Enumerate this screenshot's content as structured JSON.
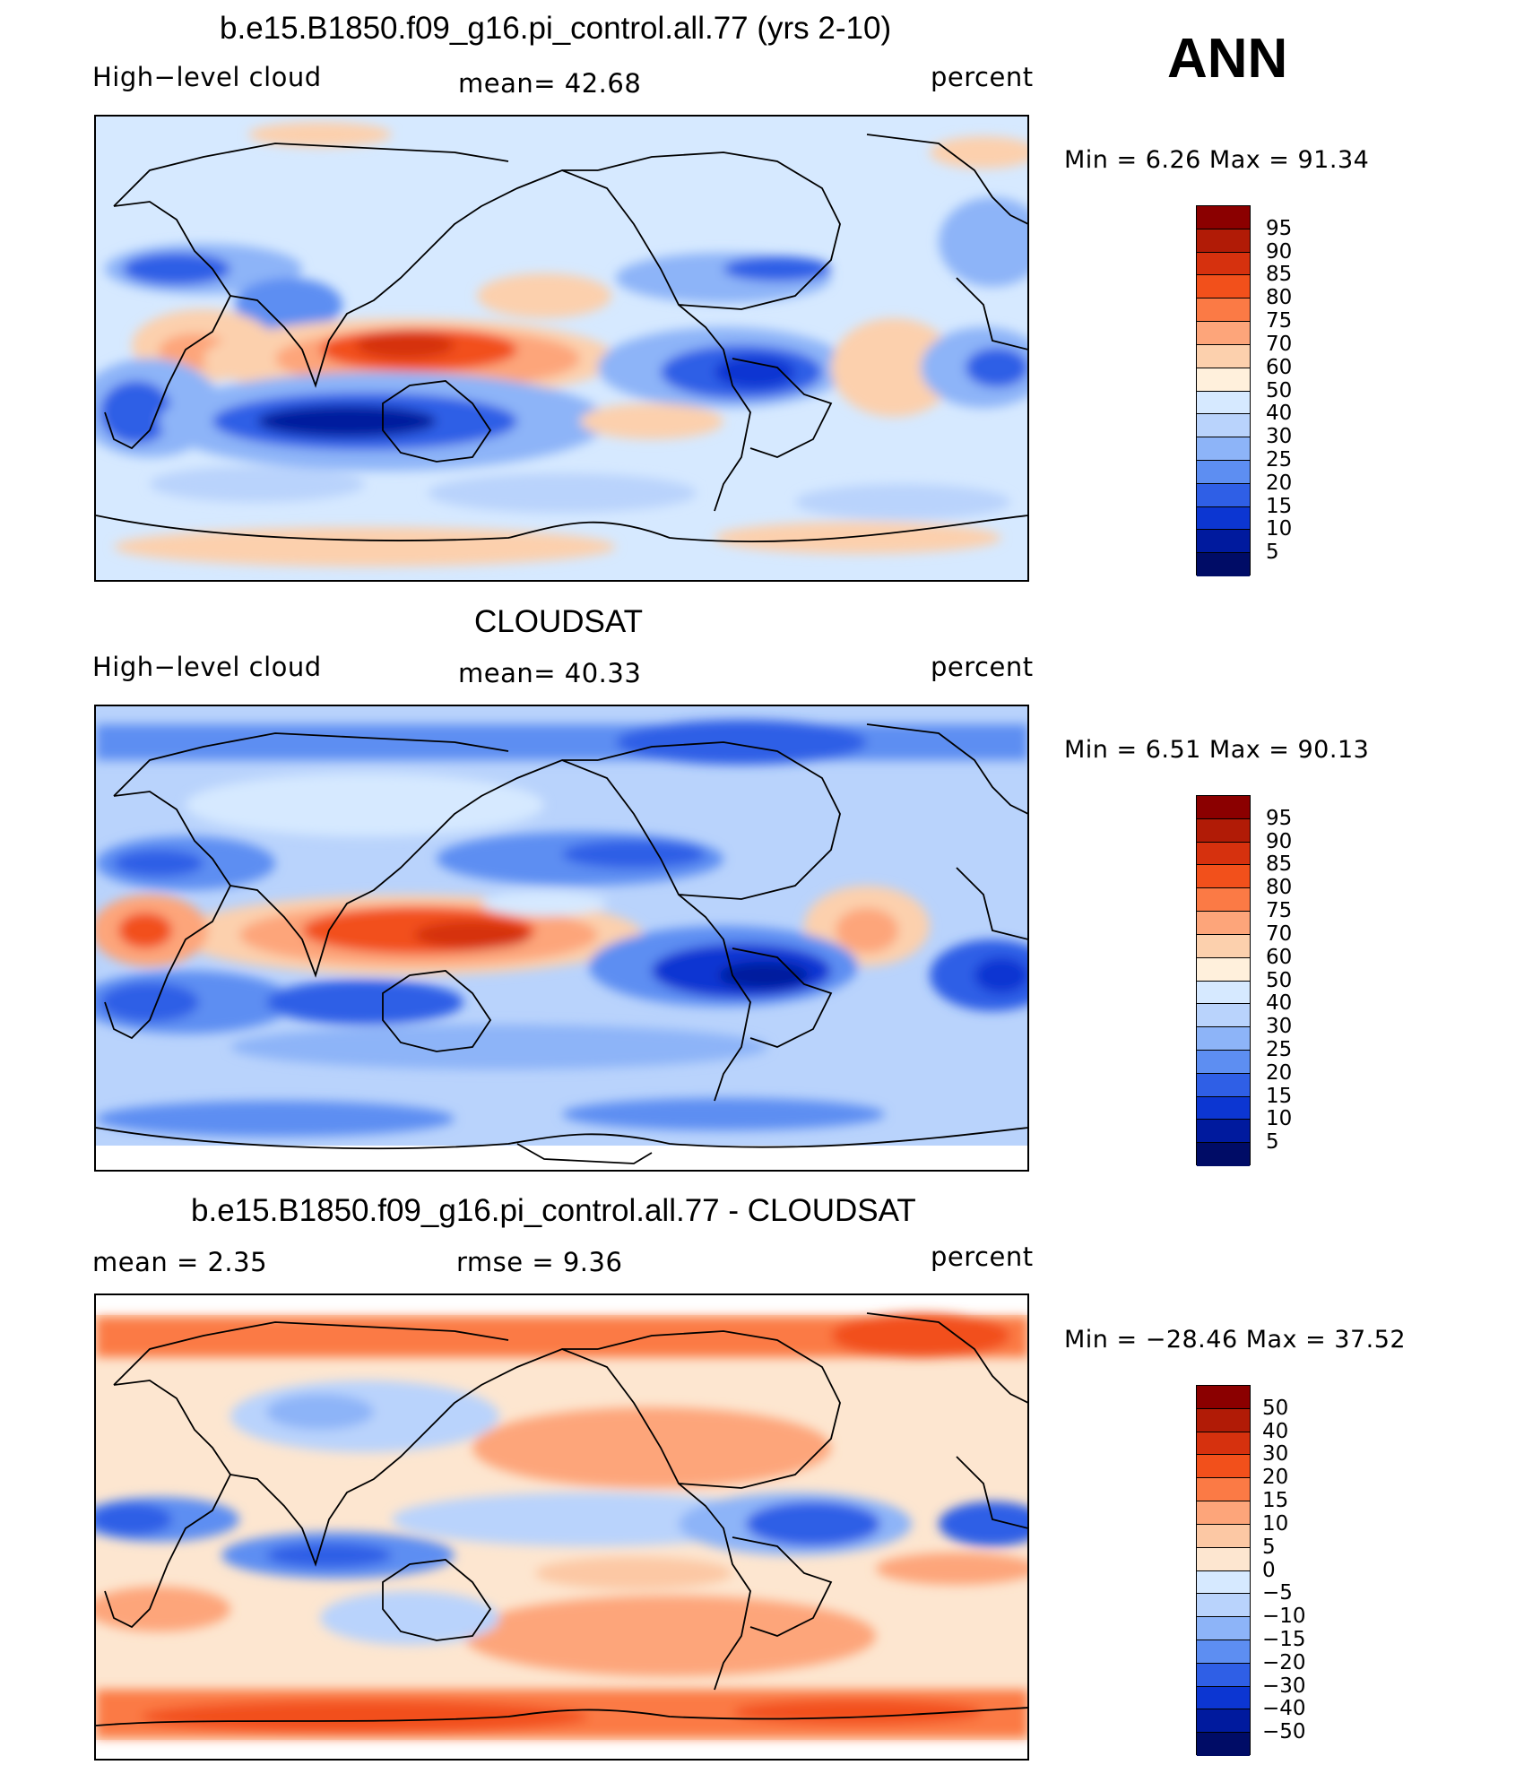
{
  "season": "ANN",
  "panels": [
    {
      "title": "b.e15.B1850.f09_g16.pi_control.all.77 (yrs 2-10)",
      "left_label": "High−level cloud",
      "center_label": "mean=   42.68",
      "units": "percent",
      "minmax": "Min =    6.26  Max =    91.34",
      "colorbar": {
        "labels": [
          "95",
          "90",
          "85",
          "80",
          "75",
          "70",
          "60",
          "50",
          "40",
          "30",
          "25",
          "20",
          "15",
          "10",
          "5"
        ],
        "colors": [
          "#8b0000",
          "#b11b06",
          "#d6310e",
          "#f2501b",
          "#fb7a45",
          "#fda57a",
          "#fcd0ad",
          "#fff0dc",
          "#d6e9ff",
          "#b9d3fc",
          "#8db4f8",
          "#5d8ef2",
          "#2f5fe6",
          "#0c36d2",
          "#001a9e",
          "#000c66"
        ]
      },
      "image_description": "Global map of modelled annual-mean high-level cloud fraction; maxima over the Maritime Continent and tropical West Pacific, minima over the subtropical oceans and northern Africa"
    },
    {
      "title": "CLOUDSAT",
      "left_label": "High−level cloud",
      "center_label": "mean=   40.33",
      "units": "percent",
      "minmax": "Min =    6.51  Max =    90.13",
      "colorbar": {
        "labels": [
          "95",
          "90",
          "85",
          "80",
          "75",
          "70",
          "60",
          "50",
          "40",
          "30",
          "25",
          "20",
          "15",
          "10",
          "5"
        ],
        "colors": [
          "#8b0000",
          "#b11b06",
          "#d6310e",
          "#f2501b",
          "#fb7a45",
          "#fda57a",
          "#fcd0ad",
          "#fff0dc",
          "#d6e9ff",
          "#b9d3fc",
          "#8db4f8",
          "#5d8ef2",
          "#2f5fe6",
          "#0c36d2",
          "#001a9e",
          "#000c66"
        ]
      },
      "image_description": "Global map of observed CloudSat annual-mean high-level cloud fraction with maxima over central Africa, the Maritime Continent and the Amazon"
    },
    {
      "title": "b.e15.B1850.f09_g16.pi_control.all.77 - CLOUDSAT",
      "left_label": "mean =      2.35",
      "center_label": "rmse =      9.36",
      "units": "percent",
      "minmax": "Min = −28.46  Max =    37.52",
      "colorbar": {
        "labels": [
          "50",
          "40",
          "30",
          "20",
          "15",
          "10",
          "5",
          "0",
          "−5",
          "−10",
          "−15",
          "−20",
          "−30",
          "−40",
          "−50"
        ],
        "colors": [
          "#8b0000",
          "#b11b06",
          "#d6310e",
          "#f2501b",
          "#fb7a45",
          "#fda57a",
          "#fcc8a4",
          "#fde6d0",
          "#d6e9ff",
          "#b9d3fc",
          "#8db4f8",
          "#5d8ef2",
          "#2f5fe6",
          "#0c36d2",
          "#001a9e",
          "#000c66"
        ]
      },
      "image_description": "Global map of model minus CloudSat difference; positive biases over high latitudes and the subtropical oceans, negative biases along the equatorial band"
    }
  ]
}
